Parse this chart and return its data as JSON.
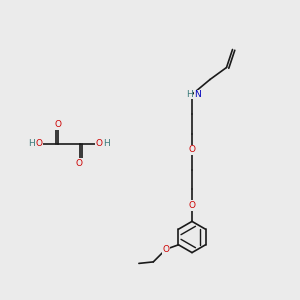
{
  "background_color": "#ebebeb",
  "bond_color": "#1a1a1a",
  "bond_width": 1.2,
  "atom_colors": {
    "O": "#cc0000",
    "N": "#0000bb",
    "H": "#3a7a7a",
    "C": "#1a1a1a"
  },
  "font_size_atom": 6.5
}
